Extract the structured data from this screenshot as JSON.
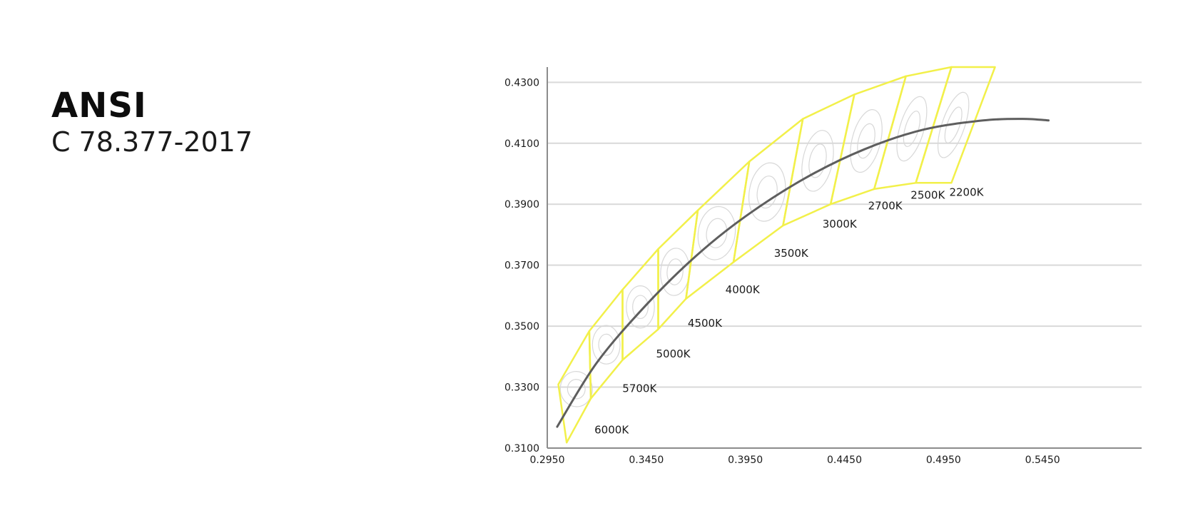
{
  "header": {
    "title": "ANSI",
    "subtitle": "C 78.377-2017"
  },
  "chart_data": {
    "type": "line",
    "title": "",
    "xlabel": "",
    "ylabel": "",
    "xlim": [
      0.295,
      0.595
    ],
    "ylim": [
      0.31,
      0.435
    ],
    "x_ticks": [
      "0.2950",
      "0.3450",
      "0.3950",
      "0.4450",
      "0.4950",
      "0.5450"
    ],
    "y_ticks": [
      "0.3100",
      "0.3300",
      "0.3500",
      "0.3700",
      "0.3900",
      "0.4100",
      "0.4300"
    ],
    "grid": "horizontal",
    "colors": {
      "quadrangle": "#f2f04a",
      "locus": "#5e5e5e",
      "grid": "#d9d9d9",
      "axis": "#8c8c8c",
      "ellipse": "#d8d8d8"
    },
    "series": [
      {
        "x": [
          0.3,
          0.32,
          0.345,
          0.37,
          0.395,
          0.425,
          0.455,
          0.485,
          0.515,
          0.535,
          0.548
        ],
        "y": [
          0.317,
          0.338,
          0.357,
          0.373,
          0.386,
          0.3985,
          0.408,
          0.4145,
          0.4175,
          0.418,
          0.4175
        ]
      }
    ],
    "quadrangles": [
      {
        "label": "6000K",
        "corners": [
          [
            0.3006,
            0.3309
          ],
          [
            0.3162,
            0.3484
          ],
          [
            0.317,
            0.3263
          ],
          [
            0.3048,
            0.3118
          ]
        ]
      },
      {
        "label": "5700K",
        "corners": [
          [
            0.3162,
            0.3484
          ],
          [
            0.333,
            0.362
          ],
          [
            0.333,
            0.3389
          ],
          [
            0.317,
            0.3263
          ]
        ]
      },
      {
        "label": "5000K",
        "corners": [
          [
            0.333,
            0.362
          ],
          [
            0.351,
            0.3753
          ],
          [
            0.351,
            0.349
          ],
          [
            0.333,
            0.3389
          ]
        ]
      },
      {
        "label": "4500K",
        "corners": [
          [
            0.351,
            0.3753
          ],
          [
            0.371,
            0.388
          ],
          [
            0.365,
            0.359
          ],
          [
            0.351,
            0.349
          ]
        ]
      },
      {
        "label": "4000K",
        "corners": [
          [
            0.371,
            0.388
          ],
          [
            0.397,
            0.404
          ],
          [
            0.389,
            0.371
          ],
          [
            0.365,
            0.359
          ]
        ]
      },
      {
        "label": "3500K",
        "corners": [
          [
            0.397,
            0.404
          ],
          [
            0.424,
            0.418
          ],
          [
            0.414,
            0.383
          ],
          [
            0.389,
            0.371
          ]
        ]
      },
      {
        "label": "3000K",
        "corners": [
          [
            0.424,
            0.418
          ],
          [
            0.45,
            0.426
          ],
          [
            0.438,
            0.39
          ],
          [
            0.414,
            0.383
          ]
        ]
      },
      {
        "label": "2700K",
        "corners": [
          [
            0.45,
            0.426
          ],
          [
            0.476,
            0.432
          ],
          [
            0.46,
            0.395
          ],
          [
            0.438,
            0.39
          ]
        ]
      },
      {
        "label": "2500K",
        "corners": [
          [
            0.476,
            0.432
          ],
          [
            0.499,
            0.435
          ],
          [
            0.481,
            0.397
          ],
          [
            0.46,
            0.395
          ]
        ]
      },
      {
        "label": "2200K",
        "corners": [
          [
            0.499,
            0.435
          ],
          [
            0.521,
            0.435
          ],
          [
            0.499,
            0.397
          ],
          [
            0.481,
            0.397
          ]
        ]
      }
    ],
    "annotations": [
      "6000K",
      "5700K",
      "5000K",
      "4500K",
      "4000K",
      "3500K",
      "3000K",
      "2700K",
      "2500K",
      "2200K"
    ]
  }
}
